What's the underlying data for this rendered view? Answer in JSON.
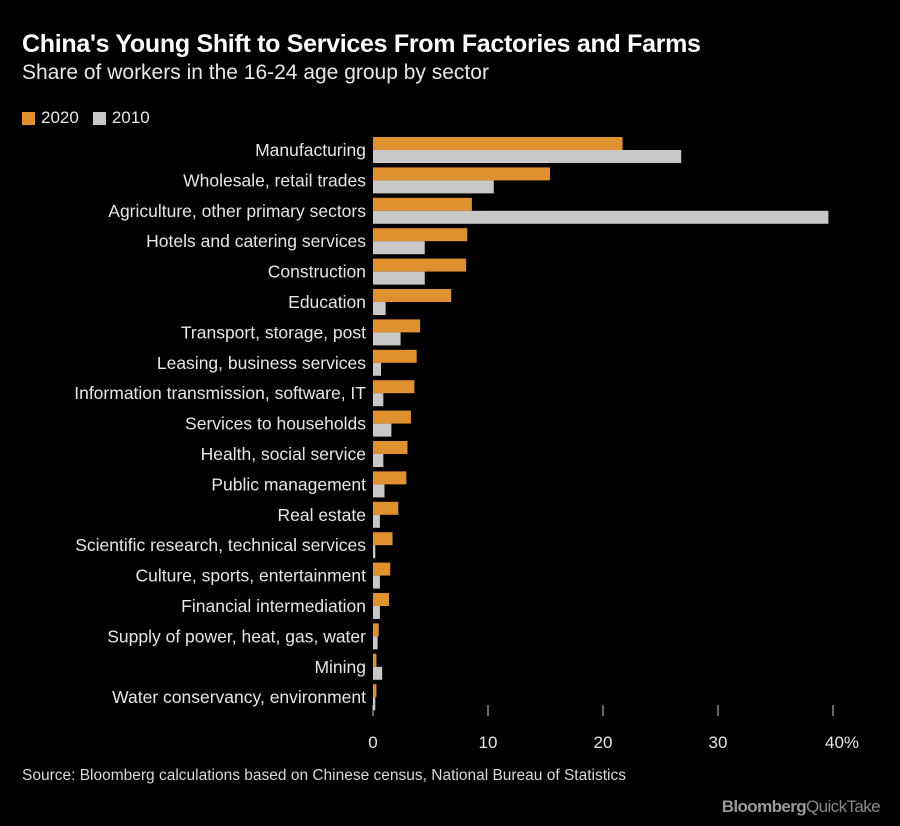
{
  "header": {
    "title": "China's Young Shift to Services From Factories and Farms",
    "subtitle": "Share of workers in the 16-24 age group by sector"
  },
  "colors": {
    "series_2020": "#e0912f",
    "series_2010": "#c8c8c8",
    "axis": "#cccccc",
    "label": "#e6e6e6"
  },
  "chart_data": {
    "type": "bar",
    "orientation": "horizontal",
    "title": "China's Young Shift to Services From Factories and Farms",
    "subtitle": "Share of workers in the 16-24 age group by sector",
    "categories": [
      "Manufacturing",
      "Wholesale, retail trades",
      "Agriculture, other primary sectors",
      "Hotels and catering services",
      "Construction",
      "Education",
      "Transport, storage, post",
      "Leasing, business services",
      "Information transmission, software, IT",
      "Services to households",
      "Health, social service",
      "Public management",
      "Real estate",
      "Scientific research, technical services",
      "Culture, sports, entertainment",
      "Financial intermediation",
      "Supply of power, heat, gas, water",
      "Mining",
      "Water conservancy, environment"
    ],
    "series": [
      {
        "name": "2020",
        "values": [
          21.7,
          15.4,
          8.6,
          8.2,
          8.1,
          6.8,
          4.1,
          3.8,
          3.6,
          3.3,
          3.0,
          2.9,
          2.2,
          1.7,
          1.5,
          1.4,
          0.5,
          0.3,
          0.3
        ]
      },
      {
        "name": "2010",
        "values": [
          26.8,
          10.5,
          39.6,
          4.5,
          4.5,
          1.1,
          2.4,
          0.7,
          0.9,
          1.6,
          0.9,
          1.0,
          0.6,
          0.2,
          0.6,
          0.6,
          0.4,
          0.8,
          0.2
        ]
      }
    ],
    "xlim": [
      0,
      40
    ],
    "xticks": [
      "0",
      "10",
      "20",
      "30",
      "40%"
    ],
    "legend_position": "top-left",
    "grid": false
  },
  "footer": {
    "source": "Source: Bloomberg calculations based on Chinese census, National Bureau of Statistics",
    "brand_main": "Bloomberg",
    "brand_sub": "QuickTake"
  }
}
